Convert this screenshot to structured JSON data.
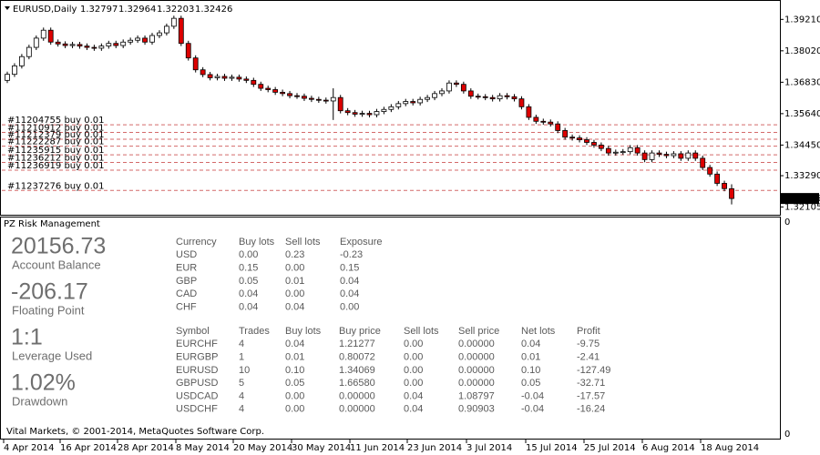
{
  "header": {
    "symbol": "EURUSD,Daily"
  },
  "price_chart": {
    "ylim": [
      1.3181,
      1.3991
    ],
    "yticks": [
      {
        "value": 1.3921,
        "label": "1.39210"
      },
      {
        "value": 1.3802,
        "label": "1.38020"
      },
      {
        "value": 1.3683,
        "label": "1.36830"
      },
      {
        "value": 1.3564,
        "label": "1.35640"
      },
      {
        "value": 1.3445,
        "label": "1.34450"
      },
      {
        "value": 1.3329,
        "label": "1.33290"
      },
      {
        "value": 1.32105,
        "label": "1.32105"
      }
    ],
    "up_color": "#ffffff",
    "down_color": "#dd0000",
    "candles": [
      [
        1.369,
        1.3723,
        1.368,
        1.3713
      ],
      [
        1.3713,
        1.3755,
        1.3703,
        1.3745
      ],
      [
        1.3745,
        1.379,
        1.3735,
        1.378
      ],
      [
        1.378,
        1.3825,
        1.377,
        1.3815
      ],
      [
        1.3815,
        1.386,
        1.3805,
        1.385
      ],
      [
        1.385,
        1.389,
        1.384,
        1.388
      ],
      [
        1.388,
        1.389,
        1.3825,
        1.3835
      ],
      [
        1.3835,
        1.3845,
        1.3818,
        1.3828
      ],
      [
        1.3828,
        1.3838,
        1.3812,
        1.3822
      ],
      [
        1.3822,
        1.3836,
        1.3812,
        1.3826
      ],
      [
        1.3826,
        1.3836,
        1.381,
        1.382
      ],
      [
        1.382,
        1.383,
        1.3805,
        1.3815
      ],
      [
        1.3815,
        1.3825,
        1.3802,
        1.3812
      ],
      [
        1.3812,
        1.383,
        1.3802,
        1.382
      ],
      [
        1.382,
        1.384,
        1.381,
        1.383
      ],
      [
        1.383,
        1.384,
        1.3812,
        1.3822
      ],
      [
        1.3822,
        1.3845,
        1.3812,
        1.3835
      ],
      [
        1.3835,
        1.3852,
        1.3825,
        1.3842
      ],
      [
        1.3842,
        1.386,
        1.3832,
        1.385
      ],
      [
        1.385,
        1.386,
        1.3825,
        1.3835
      ],
      [
        1.3835,
        1.387,
        1.3825,
        1.386
      ],
      [
        1.386,
        1.388,
        1.385,
        1.387
      ],
      [
        1.387,
        1.3905,
        1.386,
        1.3895
      ],
      [
        1.3895,
        1.3935,
        1.3885,
        1.3925
      ],
      [
        1.3925,
        1.3935,
        1.382,
        1.383
      ],
      [
        1.383,
        1.384,
        1.3765,
        1.3775
      ],
      [
        1.3775,
        1.3785,
        1.372,
        1.373
      ],
      [
        1.373,
        1.374,
        1.3702,
        1.3712
      ],
      [
        1.3712,
        1.3722,
        1.369,
        1.37
      ],
      [
        1.37,
        1.3715,
        1.369,
        1.3705
      ],
      [
        1.3705,
        1.3715,
        1.3688,
        1.3698
      ],
      [
        1.3698,
        1.3712,
        1.3688,
        1.3702
      ],
      [
        1.3702,
        1.3712,
        1.3685,
        1.3695
      ],
      [
        1.3695,
        1.3705,
        1.368,
        1.369
      ],
      [
        1.369,
        1.37,
        1.3665,
        1.3675
      ],
      [
        1.3675,
        1.3685,
        1.365,
        1.366
      ],
      [
        1.366,
        1.367,
        1.3645,
        1.3655
      ],
      [
        1.3655,
        1.3665,
        1.3635,
        1.3645
      ],
      [
        1.3645,
        1.3655,
        1.363,
        1.364
      ],
      [
        1.364,
        1.365,
        1.3622,
        1.3632
      ],
      [
        1.3632,
        1.3642,
        1.362,
        1.363
      ],
      [
        1.363,
        1.364,
        1.3612,
        1.3622
      ],
      [
        1.3622,
        1.3632,
        1.3608,
        1.3618
      ],
      [
        1.3618,
        1.3628,
        1.3605,
        1.3615
      ],
      [
        1.3615,
        1.3625,
        1.3602,
        1.3612
      ],
      [
        1.3612,
        1.366,
        1.354,
        1.3625
      ],
      [
        1.3625,
        1.3635,
        1.3565,
        1.3575
      ],
      [
        1.3575,
        1.3585,
        1.3558,
        1.3568
      ],
      [
        1.3568,
        1.3578,
        1.3552,
        1.3562
      ],
      [
        1.3562,
        1.3575,
        1.3552,
        1.3565
      ],
      [
        1.3565,
        1.3575,
        1.355,
        1.356
      ],
      [
        1.356,
        1.3582,
        1.355,
        1.3572
      ],
      [
        1.3572,
        1.359,
        1.3562,
        1.358
      ],
      [
        1.358,
        1.36,
        1.357,
        1.359
      ],
      [
        1.359,
        1.3612,
        1.358,
        1.3602
      ],
      [
        1.3602,
        1.362,
        1.3592,
        1.361
      ],
      [
        1.361,
        1.362,
        1.3595,
        1.3605
      ],
      [
        1.3605,
        1.3628,
        1.3595,
        1.3618
      ],
      [
        1.3618,
        1.3635,
        1.3608,
        1.3625
      ],
      [
        1.3625,
        1.365,
        1.3615,
        1.364
      ],
      [
        1.364,
        1.366,
        1.363,
        1.365
      ],
      [
        1.365,
        1.369,
        1.364,
        1.368
      ],
      [
        1.368,
        1.369,
        1.3665,
        1.3675
      ],
      [
        1.3675,
        1.3685,
        1.364,
        1.365
      ],
      [
        1.365,
        1.366,
        1.362,
        1.363
      ],
      [
        1.363,
        1.364,
        1.3618,
        1.3628
      ],
      [
        1.3628,
        1.3638,
        1.3615,
        1.3625
      ],
      [
        1.3625,
        1.3635,
        1.361,
        1.362
      ],
      [
        1.362,
        1.3642,
        1.361,
        1.3632
      ],
      [
        1.3632,
        1.3642,
        1.3618,
        1.3628
      ],
      [
        1.3628,
        1.3638,
        1.361,
        1.362
      ],
      [
        1.362,
        1.363,
        1.358,
        1.359
      ],
      [
        1.359,
        1.36,
        1.354,
        1.355
      ],
      [
        1.355,
        1.356,
        1.3525,
        1.3535
      ],
      [
        1.3535,
        1.3545,
        1.3522,
        1.3532
      ],
      [
        1.3532,
        1.3542,
        1.3515,
        1.3525
      ],
      [
        1.3525,
        1.3535,
        1.349,
        1.35
      ],
      [
        1.35,
        1.351,
        1.3465,
        1.3475
      ],
      [
        1.3475,
        1.3485,
        1.3462,
        1.3472
      ],
      [
        1.3472,
        1.3482,
        1.3455,
        1.3465
      ],
      [
        1.3465,
        1.3475,
        1.3445,
        1.3455
      ],
      [
        1.3455,
        1.3465,
        1.3435,
        1.3445
      ],
      [
        1.3445,
        1.3455,
        1.3422,
        1.3432
      ],
      [
        1.3432,
        1.3442,
        1.3405,
        1.3415
      ],
      [
        1.3415,
        1.3428,
        1.3405,
        1.3418
      ],
      [
        1.3418,
        1.343,
        1.3408,
        1.342
      ],
      [
        1.342,
        1.3445,
        1.341,
        1.3435
      ],
      [
        1.3435,
        1.3445,
        1.3405,
        1.3415
      ],
      [
        1.3415,
        1.3425,
        1.338,
        1.339
      ],
      [
        1.339,
        1.3425,
        1.338,
        1.3415
      ],
      [
        1.3415,
        1.3425,
        1.34,
        1.341
      ],
      [
        1.341,
        1.342,
        1.3395,
        1.3405
      ],
      [
        1.3405,
        1.3422,
        1.3395,
        1.3412
      ],
      [
        1.3412,
        1.3422,
        1.3385,
        1.3395
      ],
      [
        1.3395,
        1.3425,
        1.3385,
        1.3415
      ],
      [
        1.3415,
        1.3425,
        1.3385,
        1.3395
      ],
      [
        1.3395,
        1.3405,
        1.335,
        1.336
      ],
      [
        1.336,
        1.337,
        1.3325,
        1.3335
      ],
      [
        1.3335,
        1.3345,
        1.329,
        1.33
      ],
      [
        1.33,
        1.331,
        1.327,
        1.328
      ],
      [
        1.32797,
        1.32964,
        1.32203,
        1.32426
      ]
    ],
    "orders": [
      {
        "label": "#11204755 buy 0.01",
        "price": 1.3522
      },
      {
        "label": "#11210912 buy 0.01",
        "price": 1.3493
      },
      {
        "label": "#11212379 buy 0.01",
        "price": 1.3467
      },
      {
        "label": "#11222287 buy 0.01",
        "price": 1.3441
      },
      {
        "label": "#11235915 buy 0.01",
        "price": 1.3408
      },
      {
        "label": "#11236212 buy 0.01",
        "price": 1.3379
      },
      {
        "label": "#11236919 buy 0.01",
        "price": 1.335
      },
      {
        "label": "#11237276 buy 0.01",
        "price": 1.3273
      }
    ]
  },
  "time_axis": [
    "4 Apr 2014",
    "16 Apr 2014",
    "28 Apr 2014",
    "8 May 2014",
    "20 May 2014",
    "30 May 2014",
    "11 Jun 2014",
    "23 Jun 2014",
    "3 Jul 2014",
    "15 Jul 2014",
    "25 Jul 2014",
    "6 Aug 2014",
    "18 Aug 2014"
  ],
  "indicator": {
    "title": "PZ Risk Management",
    "axis_top": "0",
    "axis_bottom": "0",
    "stats": [
      {
        "value": "20156.73",
        "label": "Account Balance"
      },
      {
        "value": "-206.17",
        "label": "Floating Point"
      },
      {
        "value": "1:1",
        "label": "Leverage Used"
      },
      {
        "value": "1.02%",
        "label": "Drawdown"
      }
    ],
    "currency_table": {
      "header": [
        "Currency",
        "Buy lots",
        "Sell lots",
        "Exposure"
      ],
      "rows": [
        [
          "USD",
          "0.00",
          "0.23",
          "-0.23"
        ],
        [
          "EUR",
          "0.15",
          "0.00",
          "0.15"
        ],
        [
          "GBP",
          "0.05",
          "0.01",
          "0.04"
        ],
        [
          "CAD",
          "0.04",
          "0.00",
          "0.04"
        ],
        [
          "CHF",
          "0.04",
          "0.04",
          "0.00"
        ]
      ]
    },
    "symbol_table": {
      "header": [
        "Symbol",
        "Trades",
        "Buy lots",
        "Buy price",
        "Sell lots",
        "Sell price",
        "Net lots",
        "Profit"
      ],
      "rows": [
        [
          "EURCHF",
          "4",
          "0.04",
          "1.21277",
          "0.00",
          "0.00000",
          "0.04",
          "-9.75"
        ],
        [
          "EURGBP",
          "1",
          "0.01",
          "0.80072",
          "0.00",
          "0.00000",
          "0.01",
          "-2.41"
        ],
        [
          "EURUSD",
          "10",
          "0.10",
          "1.34069",
          "0.00",
          "0.00000",
          "0.10",
          "-127.49"
        ],
        [
          "GBPUSD",
          "5",
          "0.05",
          "1.66580",
          "0.00",
          "0.00000",
          "0.05",
          "-32.71"
        ],
        [
          "USDCAD",
          "4",
          "0.00",
          "0.00000",
          "0.04",
          "1.08797",
          "-0.04",
          "-17.57"
        ],
        [
          "USDCHF",
          "4",
          "0.00",
          "0.00000",
          "0.04",
          "0.90903",
          "-0.04",
          "-16.24"
        ]
      ]
    },
    "footer": "Vital Markets, © 2001-2014, MetaQuotes Software Corp."
  }
}
